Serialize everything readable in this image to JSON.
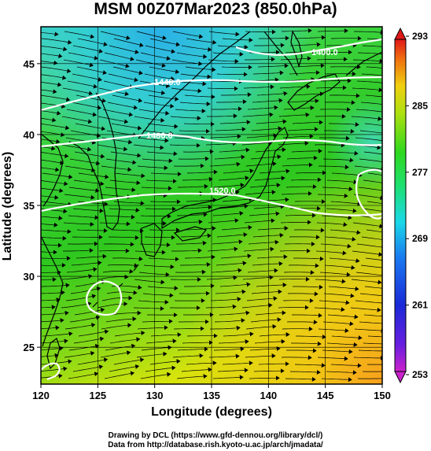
{
  "title": "MSM 00Z07Mar2023 (850.0hPa)",
  "map": {
    "x_label": "Longitude (degrees)",
    "y_label": "Latitude  (degrees)",
    "x_range": [
      120,
      150
    ],
    "y_range": [
      22.4,
      47.6
    ],
    "x_ticks": [
      "120",
      "125",
      "130",
      "135",
      "140",
      "145",
      "150"
    ],
    "y_ticks": [
      "25",
      "30",
      "35",
      "40",
      "45"
    ],
    "contour_labels": [
      "1440.0",
      "1480.0",
      "1520.0",
      "1400.0"
    ]
  },
  "colorbar": {
    "ticks": [
      "293",
      "285",
      "277",
      "269",
      "261",
      "253"
    ],
    "range": [
      253,
      293
    ]
  },
  "credits": {
    "line1": "Drawing by DCL (https://www.gfd-dennou.org/library/dcl/)",
    "line2": "Data from http://database.rish.kyoto-u.ac.jp/arch/jmadata/"
  }
}
